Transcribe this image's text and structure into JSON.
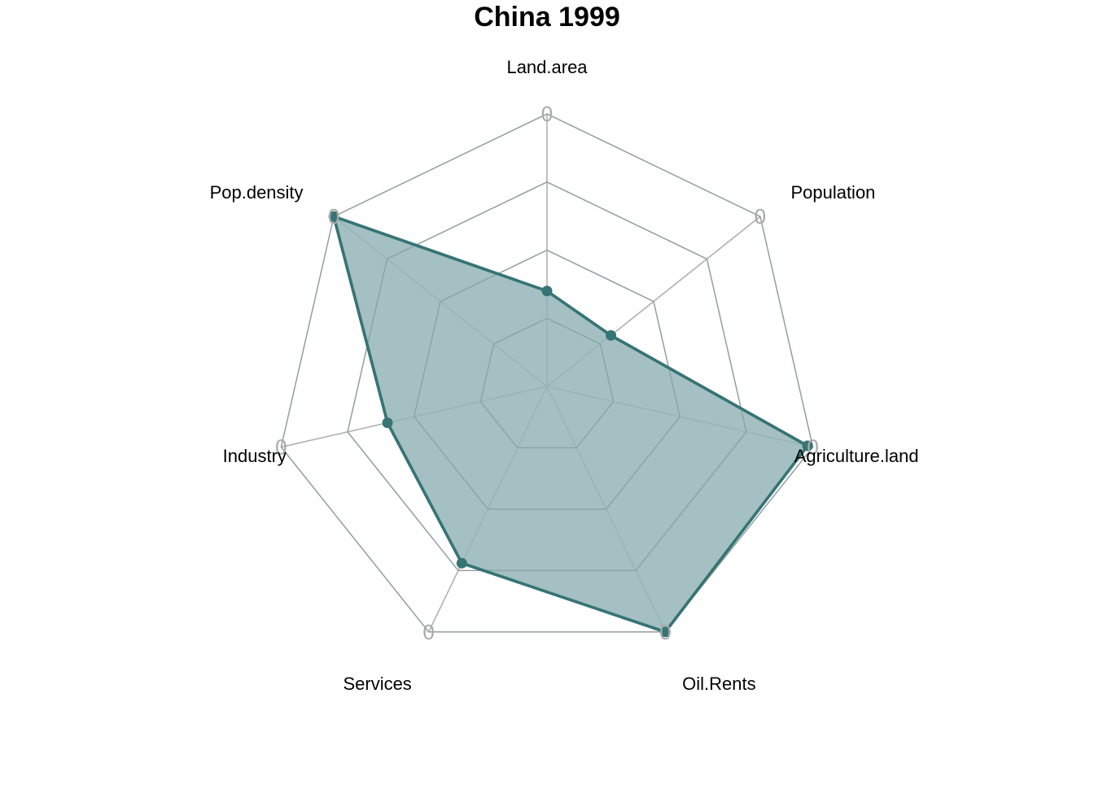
{
  "chart_data": {
    "type": "radar",
    "title": "China 1999",
    "axes": [
      "Land.area",
      "Population",
      "Agriculture.land",
      "Oil.Rents",
      "Services",
      "Industry",
      "Pop.density"
    ],
    "values": [
      0.35,
      0.3,
      0.98,
      1.0,
      0.72,
      0.6,
      1.0
    ],
    "rlim": [
      0,
      1
    ],
    "rings": 4,
    "tick_label": "0",
    "colors": {
      "series": "#367475",
      "fill": "#95b5b7",
      "grid": "#b0b0b0",
      "tick": "#aaaaaa"
    }
  }
}
